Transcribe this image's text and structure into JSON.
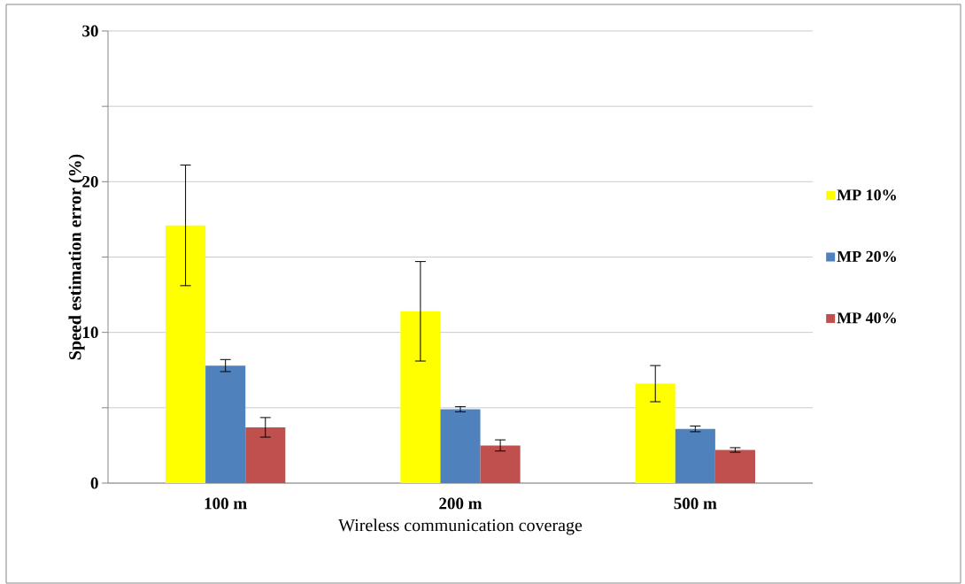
{
  "chart_data": {
    "type": "bar",
    "xlabel": "Wireless communication coverage",
    "ylabel": "Speed estimation error (%)",
    "categories": [
      "100 m",
      "200 m",
      "500 m"
    ],
    "series": [
      {
        "name": "MP 10%",
        "color": "#ffff00",
        "values": [
          17.1,
          11.4,
          6.6
        ],
        "errors": [
          4.0,
          3.3,
          1.2
        ]
      },
      {
        "name": "MP 20%",
        "color": "#4f81bd",
        "values": [
          7.8,
          4.9,
          3.6
        ],
        "errors": [
          0.4,
          0.17,
          0.19
        ]
      },
      {
        "name": "MP 40%",
        "color": "#c0504d",
        "values": [
          3.7,
          2.5,
          2.2
        ],
        "errors": [
          0.65,
          0.37,
          0.15
        ]
      }
    ],
    "ylim": [
      0,
      30
    ],
    "yticks": [
      0,
      {
        "value": 5,
        "label": null
      },
      10,
      {
        "value": 15,
        "label": null
      },
      20,
      {
        "value": 25,
        "label": null
      },
      30
    ],
    "grid": "y",
    "legend": "right"
  }
}
